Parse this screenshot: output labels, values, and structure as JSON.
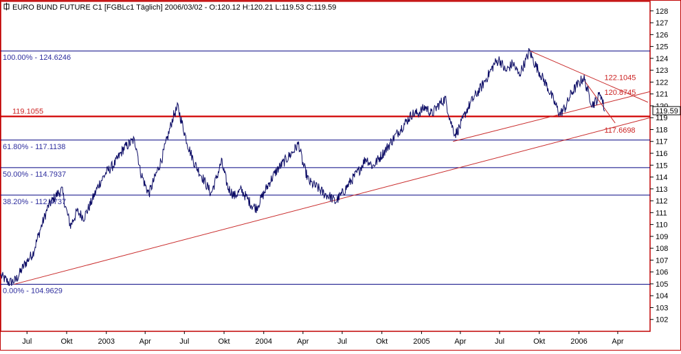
{
  "header": {
    "title": "EURO BUND FUTURE C1 [FGBLc1  Täglich] 2006/03/02 - O:120.12 H:120.21 L:119.53 C:119.59"
  },
  "colors": {
    "frame": "#c00000",
    "price_line": "#0a0a64",
    "fib_line": "#000080",
    "fib_text": "#2e2e9e",
    "trend_line": "#c82828",
    "annotation_text": "#cc2222",
    "price_tag_bg": "#ffffff"
  },
  "chart_data": {
    "type": "line",
    "title": "EURO BUND FUTURE C1 [FGBLc1  Täglich] 2006/03/02 - O:120.12 H:120.21 L:119.53 C:119.59",
    "instrument": "EURO BUND FUTURE C1",
    "ylim": [
      101,
      128.8
    ],
    "y_ticks": [
      102,
      103,
      104,
      105,
      106,
      107,
      108,
      109,
      110,
      111,
      112,
      113,
      114,
      115,
      116,
      117,
      118,
      119,
      120,
      121,
      122,
      123,
      124,
      125,
      126,
      127,
      128
    ],
    "xlim": [
      "2002-05-01",
      "2006-06-15"
    ],
    "x_ticks": [
      {
        "label": "Jul",
        "date": "2002-07-01"
      },
      {
        "label": "Okt",
        "date": "2002-10-01"
      },
      {
        "label": "2003",
        "date": "2003-01-01"
      },
      {
        "label": "Apr",
        "date": "2003-04-01"
      },
      {
        "label": "Jul",
        "date": "2003-07-01"
      },
      {
        "label": "Okt",
        "date": "2003-10-01"
      },
      {
        "label": "2004",
        "date": "2004-01-01"
      },
      {
        "label": "Apr",
        "date": "2004-04-01"
      },
      {
        "label": "Jul",
        "date": "2004-07-01"
      },
      {
        "label": "Okt",
        "date": "2004-10-01"
      },
      {
        "label": "2005",
        "date": "2005-01-01"
      },
      {
        "label": "Apr",
        "date": "2005-04-01"
      },
      {
        "label": "Jul",
        "date": "2005-07-01"
      },
      {
        "label": "Okt",
        "date": "2005-10-01"
      },
      {
        "label": "2006",
        "date": "2006-01-01"
      },
      {
        "label": "Apr",
        "date": "2006-04-01"
      }
    ],
    "series": [
      {
        "price_path": [
          [
            "2002-05-01",
            105.7
          ],
          [
            "2002-05-20",
            105.1
          ],
          [
            "2002-06-05",
            105.3
          ],
          [
            "2002-06-25",
            106.6
          ],
          [
            "2002-07-15",
            107.6
          ],
          [
            "2002-08-01",
            109.6
          ],
          [
            "2002-08-20",
            111.6
          ],
          [
            "2002-09-10",
            112.6
          ],
          [
            "2002-09-20",
            112.9
          ],
          [
            "2002-10-01",
            111.1
          ],
          [
            "2002-10-10",
            109.9
          ],
          [
            "2002-10-25",
            111.1
          ],
          [
            "2002-11-10",
            110.6
          ],
          [
            "2002-11-25",
            111.7
          ],
          [
            "2002-12-15",
            113.4
          ],
          [
            "2003-01-01",
            114.4
          ],
          [
            "2003-01-20",
            115.1
          ],
          [
            "2003-02-10",
            116.4
          ],
          [
            "2003-03-05",
            117.1
          ],
          [
            "2003-03-12",
            116.6
          ],
          [
            "2003-03-20",
            114.6
          ],
          [
            "2003-04-01",
            113.3
          ],
          [
            "2003-04-10",
            112.6
          ],
          [
            "2003-04-25",
            114.1
          ],
          [
            "2003-05-10",
            115.6
          ],
          [
            "2003-05-25",
            117.6
          ],
          [
            "2003-06-05",
            119.1
          ],
          [
            "2003-06-16",
            119.9
          ],
          [
            "2003-06-25",
            118.6
          ],
          [
            "2003-07-10",
            116.6
          ],
          [
            "2003-07-25",
            115.1
          ],
          [
            "2003-08-10",
            114.1
          ],
          [
            "2003-09-01",
            112.6
          ],
          [
            "2003-09-15",
            114.1
          ],
          [
            "2003-09-25",
            115.3
          ],
          [
            "2003-10-10",
            113.1
          ],
          [
            "2003-10-25",
            112.4
          ],
          [
            "2003-11-10",
            112.9
          ],
          [
            "2003-12-05",
            111.6
          ],
          [
            "2003-12-15",
            111.4
          ],
          [
            "2004-01-01",
            112.6
          ],
          [
            "2004-01-15",
            113.6
          ],
          [
            "2004-02-01",
            114.6
          ],
          [
            "2004-02-20",
            115.4
          ],
          [
            "2004-03-10",
            116.2
          ],
          [
            "2004-03-22",
            116.8
          ],
          [
            "2004-04-01",
            115.1
          ],
          [
            "2004-04-15",
            113.6
          ],
          [
            "2004-05-05",
            113.1
          ],
          [
            "2004-05-20",
            112.6
          ],
          [
            "2004-06-05",
            112.3
          ],
          [
            "2004-06-15",
            111.9
          ],
          [
            "2004-07-01",
            112.6
          ],
          [
            "2004-07-20",
            113.6
          ],
          [
            "2004-08-10",
            114.6
          ],
          [
            "2004-08-25",
            115.6
          ],
          [
            "2004-09-10",
            114.9
          ],
          [
            "2004-09-25",
            115.6
          ],
          [
            "2004-10-10",
            116.3
          ],
          [
            "2004-10-25",
            117.1
          ],
          [
            "2004-11-10",
            117.9
          ],
          [
            "2004-11-25",
            118.6
          ],
          [
            "2004-12-10",
            119.3
          ],
          [
            "2004-12-25",
            119.4
          ],
          [
            "2005-01-10",
            119.9
          ],
          [
            "2005-01-25",
            119.3
          ],
          [
            "2005-02-10",
            120.1
          ],
          [
            "2005-02-25",
            120.6
          ],
          [
            "2005-03-10",
            118.6
          ],
          [
            "2005-03-20",
            117.6
          ],
          [
            "2005-04-01",
            118.3
          ],
          [
            "2005-04-15",
            119.6
          ],
          [
            "2005-05-01",
            120.6
          ],
          [
            "2005-05-20",
            121.6
          ],
          [
            "2005-06-05",
            122.6
          ],
          [
            "2005-06-20",
            123.6
          ],
          [
            "2005-07-01",
            123.9
          ],
          [
            "2005-07-15",
            122.9
          ],
          [
            "2005-08-01",
            123.6
          ],
          [
            "2005-08-15",
            122.6
          ],
          [
            "2005-09-01",
            123.9
          ],
          [
            "2005-09-08",
            124.62
          ],
          [
            "2005-09-20",
            123.6
          ],
          [
            "2005-10-05",
            122.6
          ],
          [
            "2005-10-20",
            121.6
          ],
          [
            "2005-11-05",
            120.3
          ],
          [
            "2005-11-18",
            119.3
          ],
          [
            "2005-12-01",
            119.9
          ],
          [
            "2005-12-15",
            121.1
          ],
          [
            "2006-01-01",
            121.9
          ],
          [
            "2006-01-12",
            122.4
          ],
          [
            "2006-01-20",
            121.4
          ],
          [
            "2006-02-01",
            120.1
          ],
          [
            "2006-02-10",
            120.4
          ],
          [
            "2006-02-20",
            121.1
          ],
          [
            "2006-03-02",
            119.59
          ]
        ]
      }
    ],
    "fib_levels": [
      {
        "label": "100.00% - 124.6246",
        "value": 124.6246
      },
      {
        "label": "61.80% - 117.1138",
        "value": 117.1138
      },
      {
        "label": "50.00% - 114.7937",
        "value": 114.7937
      },
      {
        "label": "38.20% - 112.4737",
        "value": 112.4737
      },
      {
        "label": "0.00% - 104.9629",
        "value": 104.9629
      }
    ],
    "horizontal_line": {
      "label": "119.1055",
      "value": 119.1055
    },
    "trend_lines": [
      {
        "from": [
          "2002-06-01",
          104.9629
        ],
        "to": [
          "2006-06-15",
          119.0
        ]
      },
      {
        "from": [
          "2005-03-15",
          117.0
        ],
        "to": [
          "2006-06-15",
          121.2
        ]
      },
      {
        "from": [
          "2005-09-10",
          124.62
        ],
        "to": [
          "2006-06-10",
          120.3
        ]
      },
      {
        "from": [
          "2006-01-14",
          122.1
        ],
        "to": [
          "2006-03-26",
          118.55
        ]
      }
    ],
    "annotations": [
      {
        "text": "122.1045",
        "date": "2006-03-01",
        "value": 122.1045
      },
      {
        "text": "120.8745",
        "date": "2006-03-01",
        "value": 120.8745
      },
      {
        "text": "117.6698",
        "date": "2006-03-01",
        "value": 117.6698
      }
    ],
    "last_price": {
      "text": "119.59",
      "value": 119.59
    }
  }
}
